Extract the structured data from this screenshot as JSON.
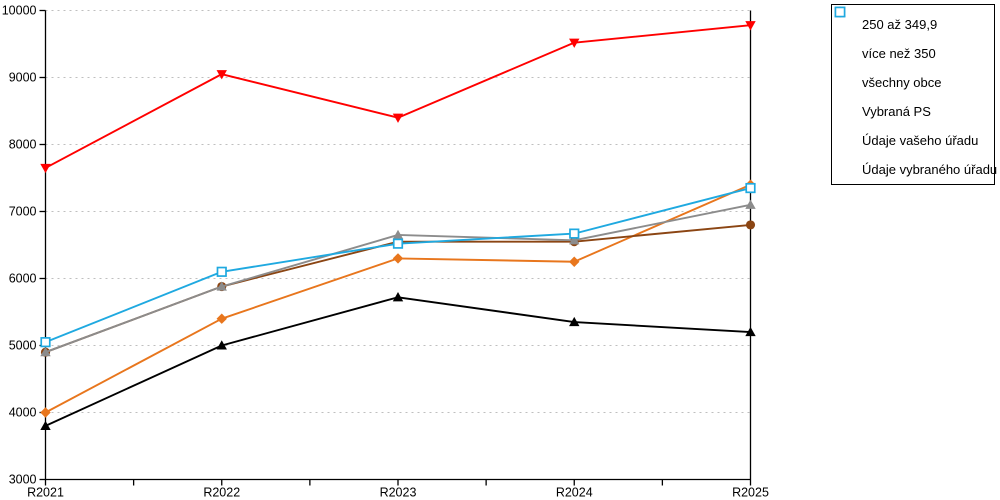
{
  "chart_data": {
    "type": "line",
    "title": "",
    "xlabel": "",
    "ylabel": "",
    "categories": [
      "R2021",
      "R2022",
      "R2023",
      "R2024",
      "R2025"
    ],
    "series": [
      {
        "name": "250 až 349,9",
        "marker": "diamond",
        "color": "#E8761D",
        "values": [
          4000,
          5400,
          6300,
          6250,
          7400
        ]
      },
      {
        "name": "více než 350",
        "marker": "circle",
        "color": "#8B4513",
        "values": [
          4900,
          5880,
          6550,
          6550,
          6800
        ]
      },
      {
        "name": "všechny obce",
        "marker": "triangle-up",
        "color": "#000000",
        "values": [
          3800,
          5000,
          5720,
          5350,
          5200
        ]
      },
      {
        "name": "Vybraná PS",
        "marker": "triangle-up",
        "color": "#8C8C8C",
        "values": [
          4900,
          5880,
          6650,
          6570,
          7100
        ]
      },
      {
        "name": "Údaje vašeho úřadu",
        "marker": "triangle-down",
        "color": "#FF0000",
        "values": [
          7650,
          9050,
          8400,
          9520,
          9780
        ]
      },
      {
        "name": "Údaje vybraného úřadu",
        "marker": "square-open",
        "color": "#1FA9E0",
        "values": [
          5050,
          6100,
          6520,
          6670,
          7350
        ]
      }
    ],
    "ylim": [
      3000,
      10000
    ],
    "ytick_step": 1000,
    "grid": "horizontal-dashed",
    "gridline_color": "#bfbfbf",
    "axis_color": "#000000",
    "legend_position": "top-right",
    "legend_border_color": "#000000"
  }
}
